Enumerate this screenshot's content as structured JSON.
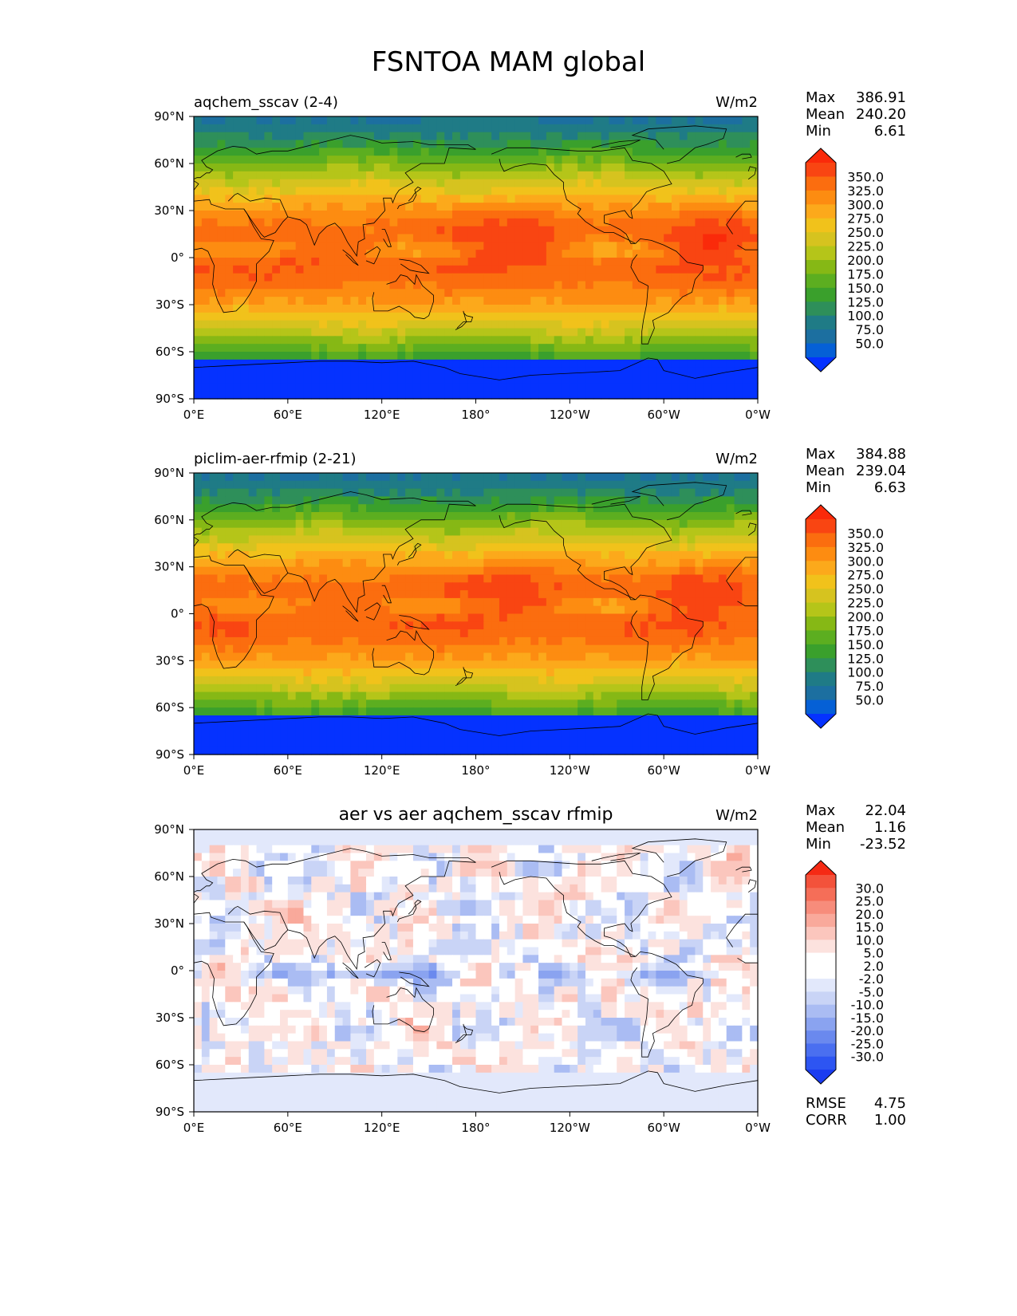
{
  "title": "FSNTOA MAM global",
  "colors": {
    "abs_levels": [
      "#0532ff",
      "#0560d6",
      "#1c6fa0",
      "#1f7b86",
      "#2e8f5a",
      "#3aa02c",
      "#5cae20",
      "#86b815",
      "#b5c519",
      "#d6c31f",
      "#f1c21b",
      "#fca91b",
      "#fd8c11",
      "#fb6d0f",
      "#f94512",
      "#fa2a0a"
    ],
    "diff_levels": [
      "#1a3cf0",
      "#2d55f2",
      "#4a6ff0",
      "#6a89ee",
      "#8aa3f0",
      "#aabcf3",
      "#c9d4f6",
      "#e2e8fb",
      "#ffffff",
      "#ffffff",
      "#fce2de",
      "#fbc6bd",
      "#f9a99b",
      "#f78c7b",
      "#f56e58",
      "#f3523b",
      "#f52a14"
    ],
    "land_outline": "#000000",
    "axis": "#000000"
  },
  "chart_data": [
    {
      "type": "heatmap",
      "name": "aqchem_sscav",
      "title_left": "aqchem_sscav (2-4)",
      "title_center": "",
      "units": "W/m2",
      "x_ticks": [
        "0°E",
        "60°E",
        "120°E",
        "180°",
        "120°W",
        "60°W",
        "0°W"
      ],
      "y_ticks": [
        "90°N",
        "60°N",
        "30°N",
        "0°",
        "30°S",
        "60°S",
        "90°S"
      ],
      "xlim": [
        0,
        360
      ],
      "ylim": [
        -90,
        90
      ],
      "stats": [
        {
          "label": "Max",
          "value": "386.91"
        },
        {
          "label": "Mean",
          "value": "240.20"
        },
        {
          "label": "Min",
          "value": "6.61"
        }
      ],
      "colorbar_levels": [
        "350.0",
        "325.0",
        "300.0",
        "275.0",
        "250.0",
        "225.0",
        "200.0",
        "175.0",
        "150.0",
        "125.0",
        "100.0",
        "75.0",
        "50.0"
      ],
      "colormap": "abs",
      "extra_stats": []
    },
    {
      "type": "heatmap",
      "name": "piclim-aer-rfmip",
      "title_left": "piclim-aer-rfmip (2-21)",
      "title_center": "",
      "units": "W/m2",
      "x_ticks": [
        "0°E",
        "60°E",
        "120°E",
        "180°",
        "120°W",
        "60°W",
        "0°W"
      ],
      "y_ticks": [
        "90°N",
        "60°N",
        "30°N",
        "0°",
        "30°S",
        "60°S",
        "90°S"
      ],
      "xlim": [
        0,
        360
      ],
      "ylim": [
        -90,
        90
      ],
      "stats": [
        {
          "label": "Max",
          "value": "384.88"
        },
        {
          "label": "Mean",
          "value": "239.04"
        },
        {
          "label": "Min",
          "value": "6.63"
        }
      ],
      "colorbar_levels": [
        "350.0",
        "325.0",
        "300.0",
        "275.0",
        "250.0",
        "225.0",
        "200.0",
        "175.0",
        "150.0",
        "125.0",
        "100.0",
        "75.0",
        "50.0"
      ],
      "colormap": "abs",
      "extra_stats": []
    },
    {
      "type": "heatmap",
      "name": "difference",
      "title_left": "",
      "title_center": "aer vs aer aqchem_sscav rfmip",
      "units": "W/m2",
      "x_ticks": [
        "0°E",
        "60°E",
        "120°E",
        "180°",
        "120°W",
        "60°W",
        "0°W"
      ],
      "y_ticks": [
        "90°N",
        "60°N",
        "30°N",
        "0°",
        "30°S",
        "60°S",
        "90°S"
      ],
      "xlim": [
        0,
        360
      ],
      "ylim": [
        -90,
        90
      ],
      "stats": [
        {
          "label": "Max",
          "value": "22.04"
        },
        {
          "label": "Mean",
          "value": "1.16"
        },
        {
          "label": "Min",
          "value": "-23.52"
        }
      ],
      "colorbar_levels": [
        "30.0",
        "25.0",
        "20.0",
        "15.0",
        "10.0",
        "5.0",
        "2.0",
        "-2.0",
        "-5.0",
        "-10.0",
        "-15.0",
        "-20.0",
        "-25.0",
        "-30.0"
      ],
      "colormap": "diff",
      "extra_stats": [
        {
          "label": "RMSE",
          "value": "4.75"
        },
        {
          "label": "CORR",
          "value": "1.00"
        }
      ]
    }
  ]
}
